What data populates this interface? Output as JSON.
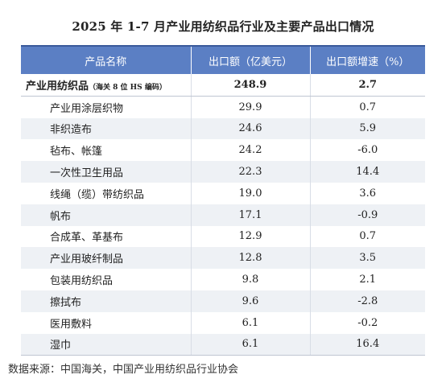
{
  "title": "2025 年 1-7 月产业用纺织品行业及主要产品出口情况",
  "headers": [
    "产品名称",
    "出口额（亿美元）",
    "出口额增速（%）"
  ],
  "total": {
    "name": "产业用纺织品",
    "note": "（海关 8 位 HS 编码）",
    "export": "248.9",
    "growth": "2.7"
  },
  "rows": [
    {
      "name": "产业用涂层织物",
      "export": "29.9",
      "growth": "0.7"
    },
    {
      "name": "非织造布",
      "export": "24.6",
      "growth": "5.9"
    },
    {
      "name": "毡布、帐篷",
      "export": "24.2",
      "growth": "-6.0"
    },
    {
      "name": "一次性卫生用品",
      "export": "22.3",
      "growth": "14.4"
    },
    {
      "name": "线绳（缆）带纺织品",
      "export": "19.0",
      "growth": "3.6"
    },
    {
      "name": "帆布",
      "export": "17.1",
      "growth": "-0.9"
    },
    {
      "name": "合成革、革基布",
      "export": "12.9",
      "growth": "0.7"
    },
    {
      "name": "产业用玻纤制品",
      "export": "12.8",
      "growth": "3.5"
    },
    {
      "name": "包装用纺织品",
      "export": "9.8",
      "growth": "2.1"
    },
    {
      "name": "擦拭布",
      "export": "9.6",
      "growth": "-2.8"
    },
    {
      "name": "医用敷料",
      "export": "6.1",
      "growth": "-0.2"
    },
    {
      "name": "湿巾",
      "export": "6.1",
      "growth": "16.4"
    }
  ],
  "source": "数据来源：中国海关，中国产业用纺织品行业协会",
  "colors": {
    "header_bg": "#5b7fc4",
    "row_shade": "#eef1f5"
  }
}
